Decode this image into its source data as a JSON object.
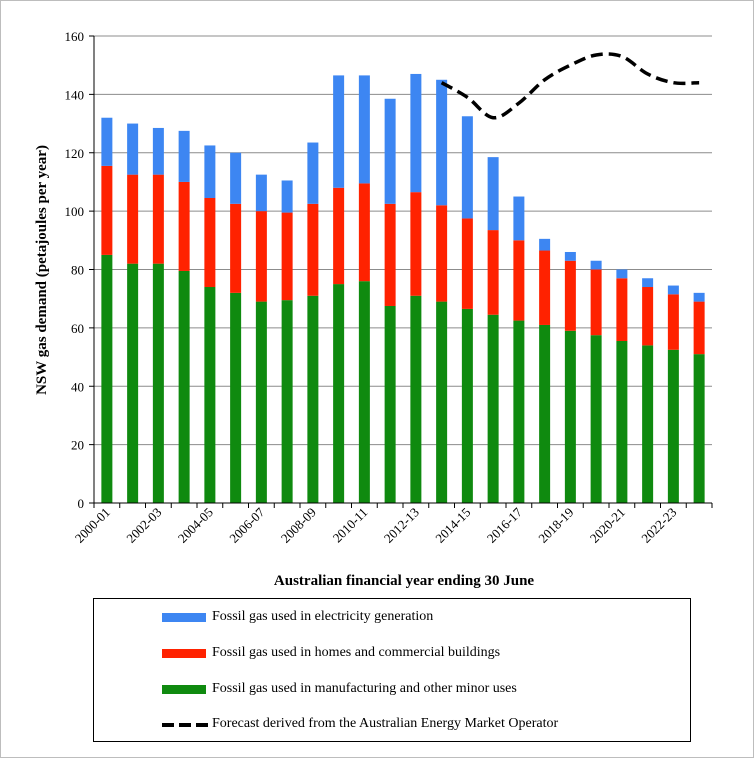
{
  "chart_data": {
    "type": "bar",
    "stacked": true,
    "xlabel": "Australian financial year ending 30 June",
    "ylabel": "NSW gas demand (petajoules per year)",
    "ylim": [
      0,
      160
    ],
    "yticks": [
      0,
      20,
      40,
      60,
      80,
      100,
      120,
      140,
      160
    ],
    "grid": true,
    "categories": [
      "2000-01",
      "2001-02",
      "2002-03",
      "2003-04",
      "2004-05",
      "2005-06",
      "2006-07",
      "2007-08",
      "2008-09",
      "2009-10",
      "2010-11",
      "2011-12",
      "2012-13",
      "2013-14",
      "2014-15",
      "2015-16",
      "2016-17",
      "2017-18",
      "2018-19",
      "2019-20",
      "2020-21",
      "2021-22",
      "2022-23",
      "2023-24"
    ],
    "xtick_labels": [
      "2000-01",
      "",
      "2002-03",
      "",
      "2004-05",
      "",
      "2006-07",
      "",
      "2008-09",
      "",
      "2010-11",
      "",
      "2012-13",
      "",
      "2014-15",
      "",
      "2016-17",
      "",
      "2018-19",
      "",
      "2020-21",
      "",
      "2022-23",
      ""
    ],
    "series": [
      {
        "name": "Fossil gas used in manufacturing and other minor uses",
        "color": "#0f8a0f",
        "values": [
          85,
          82,
          82,
          79.5,
          74,
          72,
          69,
          69.5,
          71,
          75,
          76,
          67.5,
          71,
          69,
          66.5,
          64.5,
          62.5,
          61,
          59,
          57.5,
          55.5,
          54,
          52.5,
          51
        ]
      },
      {
        "name": "Fossil gas used in homes and commercial buildings",
        "color": "#ff2200",
        "values": [
          30.5,
          30.5,
          30.5,
          30.5,
          30.5,
          30.5,
          31,
          30,
          31.5,
          33,
          33.5,
          35,
          35.5,
          33,
          31,
          29,
          27.5,
          25.5,
          24,
          22.5,
          21.5,
          20,
          19,
          18
        ]
      },
      {
        "name": "Fossil gas used in electricity generation",
        "color": "#3d86f2",
        "values": [
          16.5,
          17.5,
          16,
          17.5,
          18,
          17.5,
          12.5,
          11,
          21,
          38.5,
          37,
          36,
          40.5,
          43,
          35,
          25,
          15,
          4,
          3,
          3,
          3,
          3,
          3,
          3
        ]
      }
    ],
    "forecast": {
      "name": "Forecast derived from the Australian Energy Market Operator",
      "color": "#000000",
      "style": "dashed",
      "start_index": 13,
      "values": [
        144,
        139,
        132,
        137,
        145,
        150,
        153.5,
        153,
        147,
        144,
        144
      ]
    }
  },
  "legend": [
    {
      "label": "Fossil gas used in electricity generation",
      "color": "#3d86f2",
      "kind": "bar"
    },
    {
      "label": "Fossil gas used in homes and commercial buildings",
      "color": "#ff2200",
      "kind": "bar"
    },
    {
      "label": "Fossil gas used in manufacturing and other minor uses",
      "color": "#0f8a0f",
      "kind": "bar"
    },
    {
      "label": "Forecast derived from the Australian Energy Market Operator",
      "color": "#000000",
      "kind": "dash"
    }
  ]
}
